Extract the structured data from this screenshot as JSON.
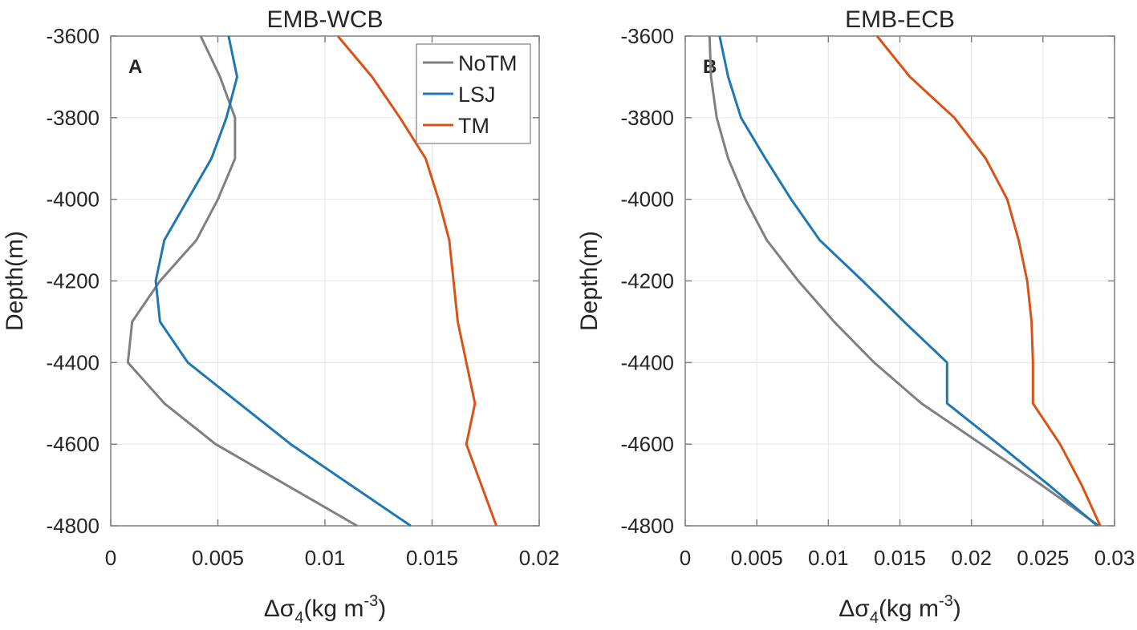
{
  "chart_data": [
    {
      "type": "line",
      "panel_label": "A",
      "title": "EMB-WCB",
      "xlabel_parts": [
        "Δσ",
        "4",
        "(kg m",
        "-3",
        ")"
      ],
      "ylabel": "Depth(m)",
      "xlim": [
        0,
        0.02
      ],
      "ylim": [
        -4800,
        -3600
      ],
      "xticks": [
        0,
        0.005,
        0.01,
        0.015,
        0.02
      ],
      "xtick_labels": [
        "0",
        "0.005",
        "0.01",
        "0.015",
        "0.02"
      ],
      "yticks": [
        -3600,
        -3800,
        -4000,
        -4200,
        -4400,
        -4600,
        -4800
      ],
      "ytick_labels": [
        "-3600",
        "-3800",
        "-4000",
        "-4200",
        "-4400",
        "-4600",
        "-4800"
      ],
      "grid": true,
      "legend_position": "top-right",
      "series": [
        {
          "name": "NoTM",
          "color": "#808080",
          "depth": [
            -3600,
            -3700,
            -3800,
            -3900,
            -4000,
            -4100,
            -4200,
            -4300,
            -4400,
            -4500,
            -4600,
            -4700,
            -4800
          ],
          "values": [
            0.0042,
            0.0051,
            0.0058,
            0.0058,
            0.005,
            0.004,
            0.0023,
            0.001,
            0.0008,
            0.0025,
            0.0049,
            0.0082,
            0.0115
          ]
        },
        {
          "name": "LSJ",
          "color": "#1f77b4",
          "depth": [
            -3600,
            -3700,
            -3800,
            -3900,
            -4000,
            -4100,
            -4200,
            -4300,
            -4400,
            -4500,
            -4600,
            -4700,
            -4800
          ],
          "values": [
            0.0055,
            0.0059,
            0.0054,
            0.0047,
            0.0036,
            0.0025,
            0.0021,
            0.0023,
            0.0036,
            0.006,
            0.0084,
            0.0112,
            0.014
          ]
        },
        {
          "name": "TM",
          "color": "#d95319",
          "depth": [
            -3600,
            -3700,
            -3800,
            -3900,
            -4000,
            -4100,
            -4200,
            -4300,
            -4400,
            -4500,
            -4600,
            -4700,
            -4800
          ],
          "values": [
            0.0106,
            0.0122,
            0.0135,
            0.0147,
            0.0153,
            0.0158,
            0.016,
            0.0162,
            0.0166,
            0.017,
            0.0166,
            0.0173,
            0.018
          ]
        }
      ]
    },
    {
      "type": "line",
      "panel_label": "B",
      "title": "EMB-ECB",
      "xlabel_parts": [
        "Δσ",
        "4",
        "(kg m",
        "-3",
        ")"
      ],
      "ylabel": "Depth(m)",
      "xlim": [
        0,
        0.03
      ],
      "ylim": [
        -4800,
        -3600
      ],
      "xticks": [
        0,
        0.005,
        0.01,
        0.015,
        0.02,
        0.025,
        0.03
      ],
      "xtick_labels": [
        "0",
        "0.005",
        "0.01",
        "0.015",
        "0.02",
        "0.025",
        "0.03"
      ],
      "yticks": [
        -3600,
        -3800,
        -4000,
        -4200,
        -4400,
        -4600,
        -4800
      ],
      "ytick_labels": [
        "-3600",
        "-3800",
        "-4000",
        "-4200",
        "-4400",
        "-4600",
        "-4800"
      ],
      "grid": true,
      "series": [
        {
          "name": "NoTM",
          "color": "#808080",
          "depth": [
            -3600,
            -3700,
            -3800,
            -3900,
            -4000,
            -4100,
            -4200,
            -4300,
            -4400,
            -4500,
            -4600,
            -4700,
            -4800
          ],
          "values": [
            0.0017,
            0.0018,
            0.0022,
            0.003,
            0.0042,
            0.0057,
            0.0079,
            0.0104,
            0.0132,
            0.0165,
            0.0207,
            0.0249,
            0.0289
          ]
        },
        {
          "name": "LSJ",
          "color": "#1f77b4",
          "depth": [
            -3600,
            -3700,
            -3800,
            -3900,
            -4000,
            -4100,
            -4200,
            -4300,
            -4400,
            -4500,
            -4600,
            -4700,
            -4800
          ],
          "values": [
            0.0024,
            0.003,
            0.0039,
            0.0056,
            0.0074,
            0.0094,
            0.0124,
            0.0153,
            0.0183,
            0.0183,
            0.0219,
            0.0254,
            0.0288
          ]
        },
        {
          "name": "TM",
          "color": "#d95319",
          "depth": [
            -3600,
            -3700,
            -3800,
            -3900,
            -4000,
            -4100,
            -4200,
            -4300,
            -4400,
            -4500,
            -4600,
            -4700,
            -4800
          ],
          "values": [
            0.0134,
            0.0157,
            0.0188,
            0.021,
            0.0225,
            0.0233,
            0.0239,
            0.0242,
            0.0243,
            0.0243,
            0.0262,
            0.0277,
            0.029
          ]
        }
      ]
    }
  ]
}
